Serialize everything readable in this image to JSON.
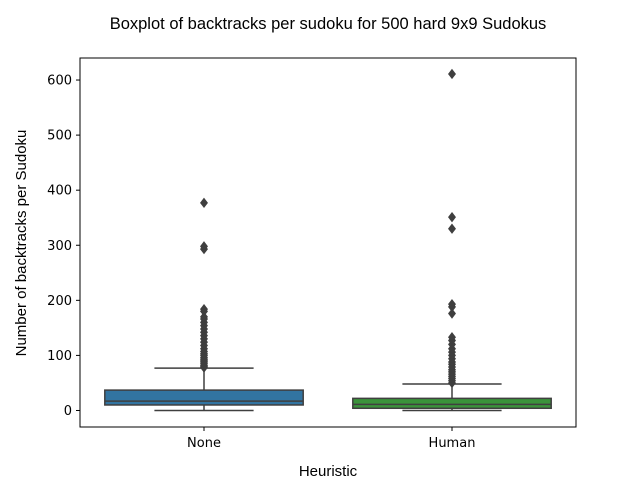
{
  "chart_data": {
    "type": "box",
    "title": "Boxplot of backtracks per sudoku for 500 hard 9x9 Sudokus",
    "xlabel": "Heuristic",
    "ylabel": "Number of backtracks per Sudoku",
    "ylim": [
      -30,
      640
    ],
    "yticks": [
      0,
      100,
      200,
      300,
      400,
      500,
      600
    ],
    "ytick_labels": [
      "0",
      "100",
      "200",
      "300",
      "400",
      "500",
      "600"
    ],
    "grid": false,
    "categories": [
      "None",
      "Human"
    ],
    "series": [
      {
        "color": "#3274a1",
        "whisker_low": 0,
        "q1": 10,
        "median": 17,
        "q3": 37,
        "whisker_high": 77,
        "outliers": [
          78,
          80,
          82,
          85,
          88,
          90,
          93,
          96,
          100,
          103,
          107,
          112,
          118,
          124,
          130,
          136,
          142,
          148,
          154,
          160,
          166,
          170,
          180,
          184,
          293,
          298,
          377
        ]
      },
      {
        "color": "#3a923a",
        "whisker_low": 0,
        "q1": 4,
        "median": 11,
        "q3": 22,
        "whisker_high": 48,
        "outliers": [
          50,
          54,
          58,
          62,
          66,
          70,
          74,
          79,
          84,
          88,
          94,
          100,
          106,
          112,
          120,
          127,
          133,
          176,
          188,
          193,
          330,
          351,
          611
        ]
      }
    ]
  }
}
